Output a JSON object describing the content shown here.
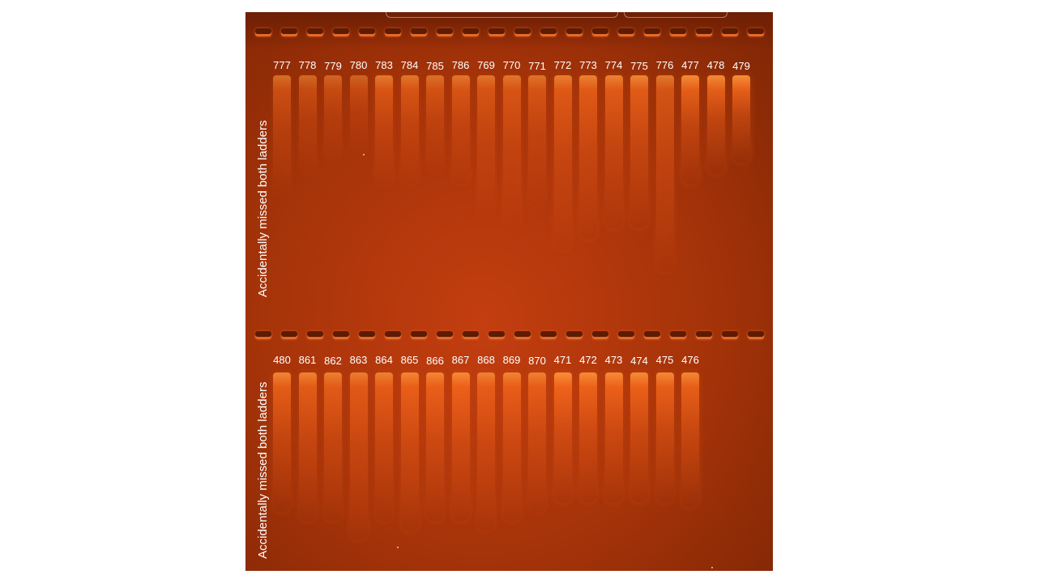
{
  "colors": {
    "gel_background": "#a53309",
    "lane_strong": "#ff7a22",
    "lane_weak": "#d5561a",
    "label_text": "#ffffff"
  },
  "side_notes": {
    "top": "Accidentally missed both ladders",
    "bottom": "Accidentally missed both ladders"
  },
  "top_tier": {
    "lanes": [
      {
        "label": "777",
        "intensity": 0.45,
        "smear": 0.55
      },
      {
        "label": "778",
        "intensity": 0.35,
        "smear": 0.45
      },
      {
        "label": "779",
        "intensity": 0.3,
        "smear": 0.4
      },
      {
        "label": "780",
        "intensity": 0.25,
        "smear": 0.35
      },
      {
        "label": "783",
        "intensity": 0.6,
        "smear": 0.5
      },
      {
        "label": "784",
        "intensity": 0.55,
        "smear": 0.5
      },
      {
        "label": "785",
        "intensity": 0.45,
        "smear": 0.45
      },
      {
        "label": "786",
        "intensity": 0.55,
        "smear": 0.5
      },
      {
        "label": "769",
        "intensity": 0.5,
        "smear": 0.65
      },
      {
        "label": "770",
        "intensity": 0.55,
        "smear": 0.7
      },
      {
        "label": "771",
        "intensity": 0.5,
        "smear": 0.6
      },
      {
        "label": "772",
        "intensity": 0.7,
        "smear": 0.8
      },
      {
        "label": "773",
        "intensity": 0.75,
        "smear": 0.75
      },
      {
        "label": "774",
        "intensity": 0.75,
        "smear": 0.7
      },
      {
        "label": "775",
        "intensity": 0.8,
        "smear": 0.7
      },
      {
        "label": "776",
        "intensity": 0.6,
        "smear": 0.9
      },
      {
        "label": "477",
        "intensity": 0.9,
        "smear": 0.5
      },
      {
        "label": "478",
        "intensity": 0.9,
        "smear": 0.45
      },
      {
        "label": "479",
        "intensity": 0.95,
        "smear": 0.4
      }
    ]
  },
  "bottom_tier": {
    "lanes": [
      {
        "label": "480",
        "intensity": 0.8,
        "smear": 0.75
      },
      {
        "label": "861",
        "intensity": 0.75,
        "smear": 0.8
      },
      {
        "label": "862",
        "intensity": 0.7,
        "smear": 0.8
      },
      {
        "label": "863",
        "intensity": 0.65,
        "smear": 0.9
      },
      {
        "label": "864",
        "intensity": 0.7,
        "smear": 0.8
      },
      {
        "label": "865",
        "intensity": 0.8,
        "smear": 0.85
      },
      {
        "label": "866",
        "intensity": 0.8,
        "smear": 0.8
      },
      {
        "label": "867",
        "intensity": 0.85,
        "smear": 0.8
      },
      {
        "label": "868",
        "intensity": 0.7,
        "smear": 0.85
      },
      {
        "label": "869",
        "intensity": 0.75,
        "smear": 0.8
      },
      {
        "label": "870",
        "intensity": 0.7,
        "smear": 0.75
      },
      {
        "label": "471",
        "intensity": 0.95,
        "smear": 0.7
      },
      {
        "label": "472",
        "intensity": 0.9,
        "smear": 0.7
      },
      {
        "label": "473",
        "intensity": 0.9,
        "smear": 0.7
      },
      {
        "label": "474",
        "intensity": 0.9,
        "smear": 0.7
      },
      {
        "label": "475",
        "intensity": 0.85,
        "smear": 0.7
      },
      {
        "label": "476",
        "intensity": 0.85,
        "smear": 0.72
      }
    ]
  }
}
